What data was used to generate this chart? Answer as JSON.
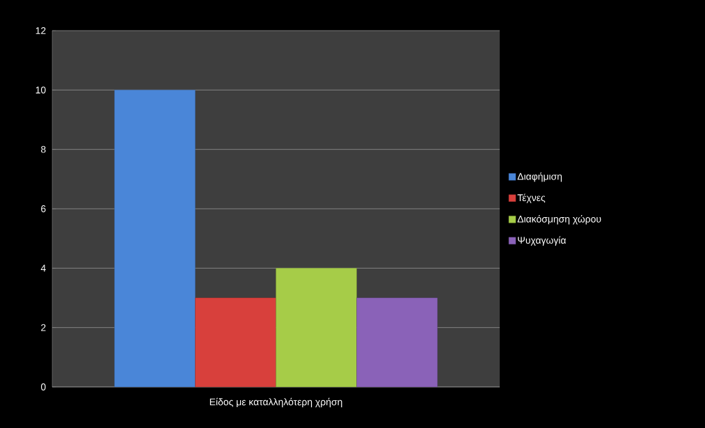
{
  "chart_data": {
    "type": "bar",
    "categories": [
      "Είδος με καταλληλότερη χρήση"
    ],
    "series": [
      {
        "name": "Διαφήμιση",
        "color": "#4a86d8",
        "values": [
          10
        ]
      },
      {
        "name": "Τέχνες",
        "color": "#d8403c",
        "values": [
          3
        ]
      },
      {
        "name": "Διακόσμηση χώρου",
        "color": "#a6cc48",
        "values": [
          4
        ]
      },
      {
        "name": "Ψυχαγωγία",
        "color": "#8a62b8",
        "values": [
          3
        ]
      }
    ],
    "ylim": [
      0,
      12
    ],
    "yticks": [
      0,
      2,
      4,
      6,
      8,
      10,
      12
    ],
    "grid": "y",
    "legend": "right"
  }
}
